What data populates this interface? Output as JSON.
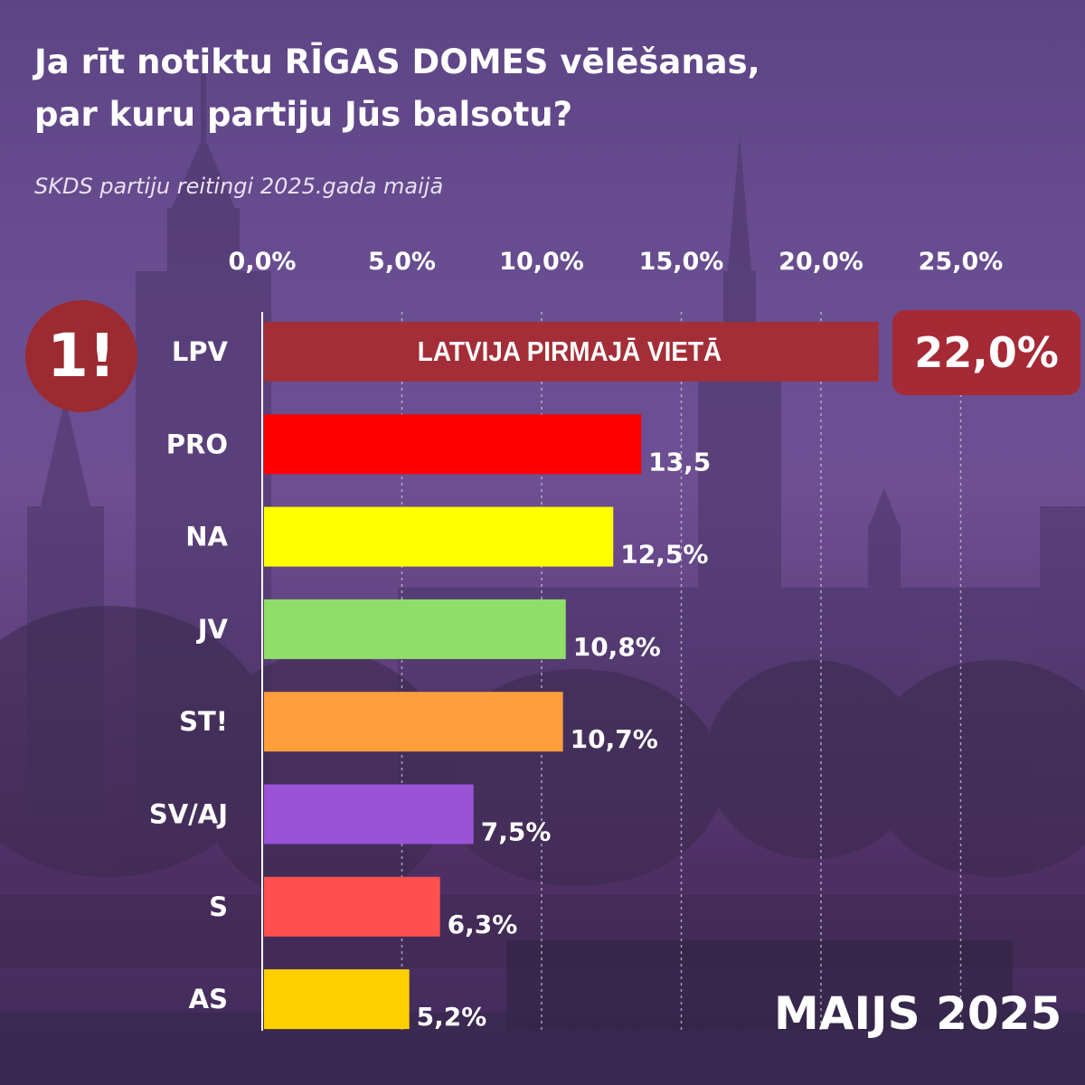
{
  "header": {
    "title_line1": "Ja rīt notiktu RĪGAS DOMES vēlēšanas,",
    "title_line2": "par kuru partiju Jūs balsotu?",
    "subtitle": "SKDS partiju reitingi 2025.gada maijā"
  },
  "badge": {
    "logo_text": "1!",
    "leader_name": "LATVIJA PIRMAJĀ VIETĀ",
    "leader_value": "22,0%"
  },
  "footer": {
    "period": "MAIJS 2025"
  },
  "chart_data": {
    "type": "bar",
    "orientation": "horizontal",
    "title": "Ja rīt notiktu RĪGAS DOMES vēlēšanas, par kuru partiju Jūs balsotu?",
    "xlabel": "",
    "ylabel": "",
    "xlim": [
      0,
      25
    ],
    "ticks": [
      "0,0%",
      "5,0%",
      "10,0%",
      "15,0%",
      "20,0%",
      "25,0%"
    ],
    "grid": true,
    "categories": [
      "LPV",
      "PRO",
      "NA",
      "JV",
      "ST!",
      "SV/AJ",
      "S",
      "AS"
    ],
    "values": [
      22.0,
      13.5,
      12.5,
      10.8,
      10.7,
      7.5,
      6.3,
      5.2
    ],
    "labels": [
      "",
      "13,5",
      "12,5%",
      "10,8%",
      "10,7%",
      "7,5%",
      "6,3%",
      "5,2%"
    ],
    "colors": [
      "#a42e38",
      "#ff0000",
      "#ffff00",
      "#91dd6a",
      "#ff9e3a",
      "#9a52d6",
      "#ff5050",
      "#ffd000"
    ]
  }
}
